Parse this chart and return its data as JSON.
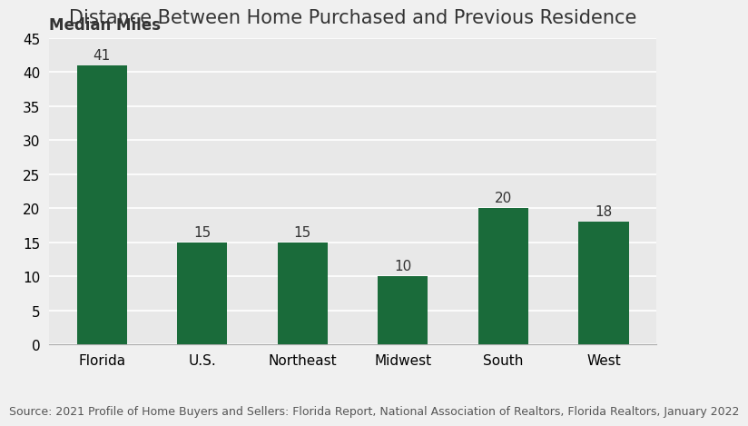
{
  "title": "Distance Between Home Purchased and Previous Residence",
  "ylabel": "Median Miles",
  "categories": [
    "Florida",
    "U.S.",
    "Northeast",
    "Midwest",
    "South",
    "West"
  ],
  "values": [
    41,
    15,
    15,
    10,
    20,
    18
  ],
  "bar_color": "#1a6b3a",
  "ylim": [
    0,
    45
  ],
  "yticks": [
    0,
    5,
    10,
    15,
    20,
    25,
    30,
    35,
    40,
    45
  ],
  "source_text": "Source: 2021 Profile of Home Buyers and Sellers: Florida Report, National Association of Realtors, Florida Realtors, January 2022",
  "background_color": "#f0f0f0",
  "title_fontsize": 15,
  "ylabel_fontsize": 12,
  "bar_label_fontsize": 11,
  "xtick_fontsize": 11,
  "ytick_fontsize": 11,
  "source_fontsize": 9
}
